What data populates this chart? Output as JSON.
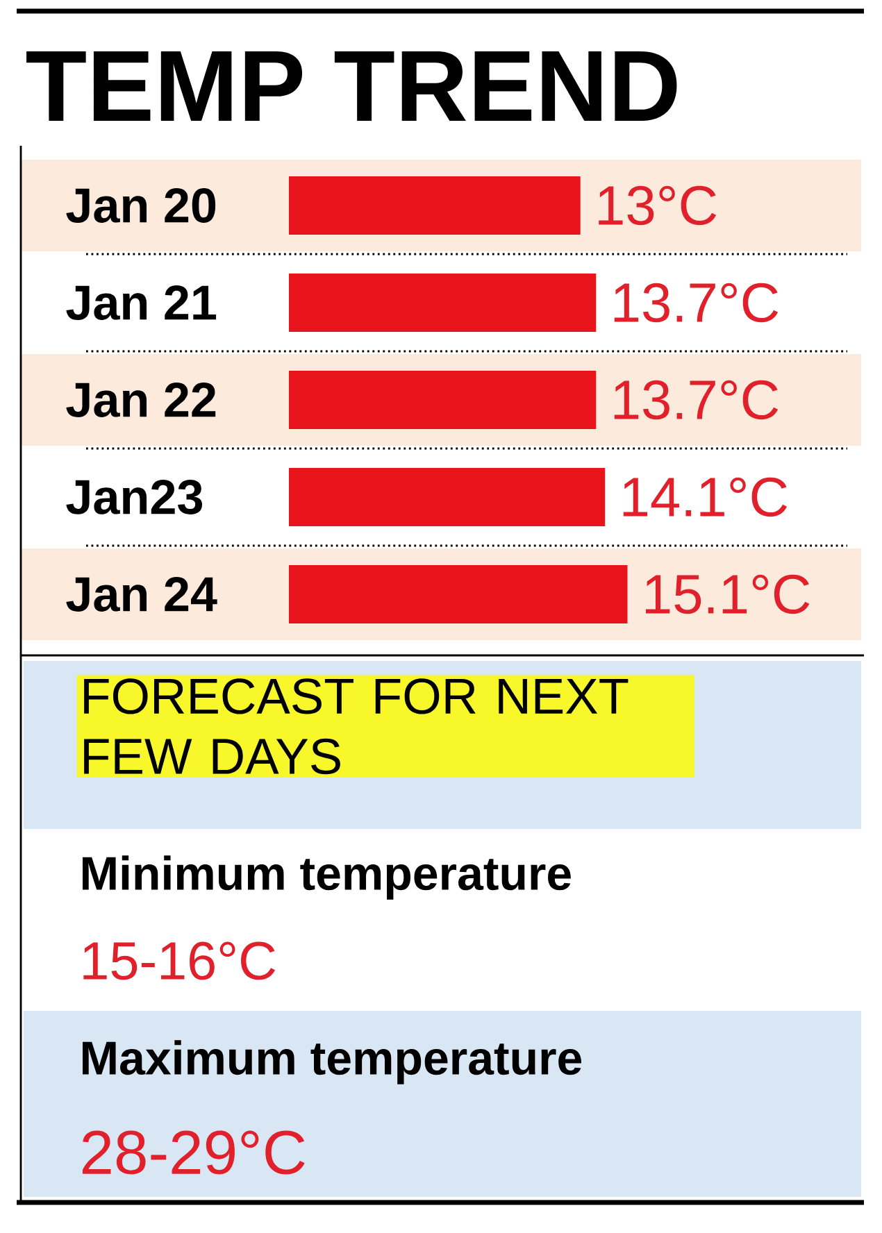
{
  "chart_data": {
    "type": "bar",
    "orientation": "horizontal",
    "title": "TEMP TREND",
    "categories": [
      "Jan 20",
      "Jan 21",
      "Jan 22",
      "Jan23",
      "Jan 24"
    ],
    "values": [
      13,
      13.7,
      13.7,
      14.1,
      15.1
    ],
    "value_labels": [
      "13°C",
      "13.7°C",
      "13.7°C",
      "14.1°C",
      "15.1°C"
    ],
    "color": "#e8141c",
    "annotations": [
      "FORECAST FOR NEXT FEW DAYS",
      "Minimum temperature",
      "15-16°C",
      "Maximum temperature",
      "28-29°C"
    ]
  }
}
